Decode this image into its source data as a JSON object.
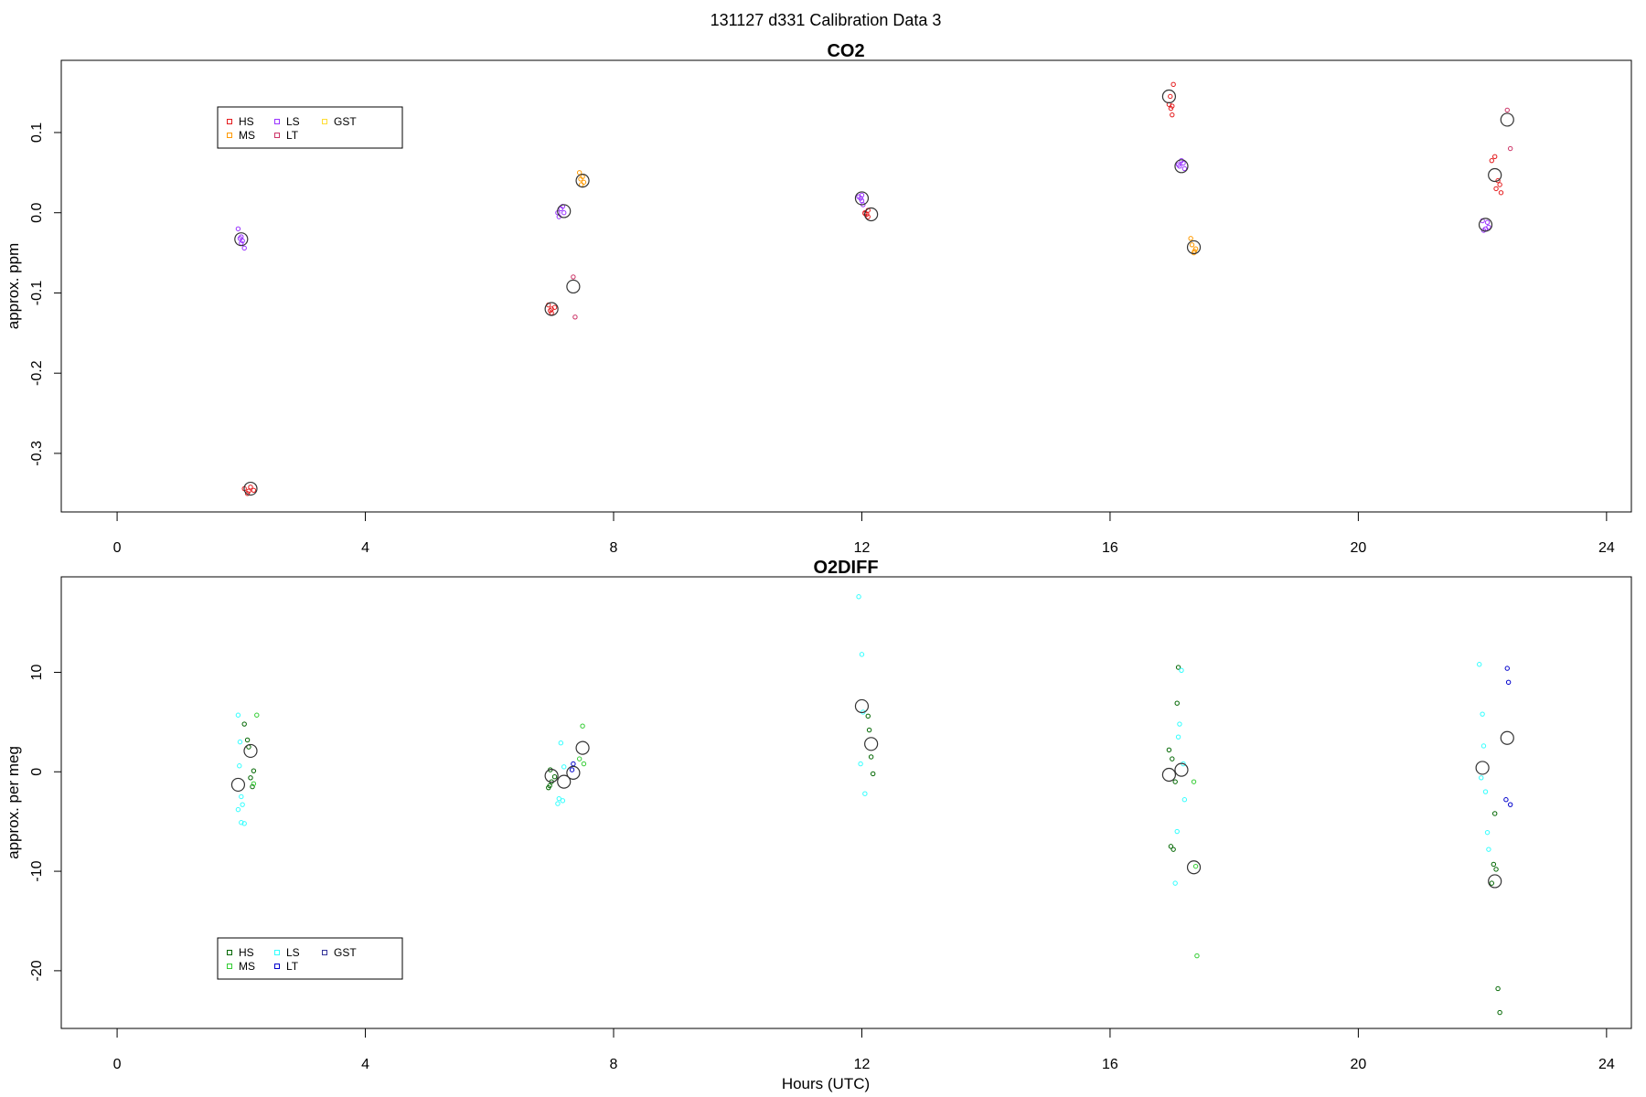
{
  "figure": {
    "title": "131127   d331   Calibration Data 3"
  },
  "chart_data": [
    {
      "type": "scatter",
      "title": "CO2",
      "xlabel": "",
      "ylabel": "approx. ppm",
      "xlim": [
        -0.9,
        24.4
      ],
      "ylim": [
        -0.373,
        0.19
      ],
      "xticks": [
        0,
        4,
        8,
        12,
        16,
        20,
        24
      ],
      "yticks": [
        -0.3,
        -0.2,
        -0.1,
        0.0,
        0.1
      ],
      "ytick_labels": [
        "-0.3",
        "-0.2",
        "-0.1",
        "0.0",
        "0.1"
      ],
      "grid": false,
      "legend": {
        "position": "top-left",
        "columns": 3
      },
      "series": [
        {
          "name": "HS",
          "color": "#e41a1c",
          "points": [
            [
              2.05,
              -0.344
            ],
            [
              2.1,
              -0.35
            ],
            [
              2.15,
              -0.342
            ],
            [
              2.2,
              -0.346
            ],
            [
              2.12,
              -0.347
            ],
            [
              6.95,
              -0.115
            ],
            [
              7.0,
              -0.125
            ],
            [
              7.05,
              -0.118
            ],
            [
              7.0,
              -0.12
            ],
            [
              6.98,
              -0.122
            ],
            [
              12.05,
              -0.001
            ],
            [
              12.1,
              0.003
            ],
            [
              12.08,
              -0.002
            ],
            [
              12.1,
              -0.005
            ],
            [
              12.05,
              0.0
            ],
            [
              16.95,
              0.135
            ],
            [
              17.0,
              0.122
            ],
            [
              16.98,
              0.13
            ],
            [
              17.02,
              0.16
            ],
            [
              17.0,
              0.133
            ],
            [
              16.97,
              0.145
            ],
            [
              22.15,
              0.065
            ],
            [
              22.2,
              0.07
            ],
            [
              22.25,
              0.04
            ],
            [
              22.28,
              0.035
            ],
            [
              22.3,
              0.025
            ],
            [
              22.22,
              0.03
            ]
          ]
        },
        {
          "name": "MS",
          "color": "#ff9900",
          "points": [
            [
              7.45,
              0.05
            ],
            [
              7.5,
              0.045
            ],
            [
              7.48,
              0.035
            ],
            [
              7.52,
              0.038
            ],
            [
              7.47,
              0.042
            ],
            [
              17.3,
              -0.032
            ],
            [
              17.35,
              -0.05
            ],
            [
              17.38,
              -0.045
            ],
            [
              17.32,
              -0.04
            ],
            [
              17.36,
              -0.048
            ]
          ]
        },
        {
          "name": "LS",
          "color": "#9933ff",
          "points": [
            [
              1.95,
              -0.02
            ],
            [
              1.98,
              -0.032
            ],
            [
              2.0,
              -0.038
            ],
            [
              2.02,
              -0.035
            ],
            [
              2.05,
              -0.044
            ],
            [
              2.0,
              -0.03
            ],
            [
              7.1,
              0.0
            ],
            [
              7.15,
              0.005
            ],
            [
              7.2,
              0.0
            ],
            [
              7.12,
              -0.005
            ],
            [
              7.18,
              0.008
            ],
            [
              11.95,
              0.02
            ],
            [
              12.0,
              0.015
            ],
            [
              12.02,
              0.01
            ],
            [
              12.0,
              0.022
            ],
            [
              11.98,
              0.018
            ],
            [
              17.1,
              0.06
            ],
            [
              17.15,
              0.065
            ],
            [
              17.2,
              0.055
            ],
            [
              17.12,
              0.058
            ],
            [
              17.18,
              0.062
            ],
            [
              22.0,
              -0.01
            ],
            [
              22.05,
              -0.02
            ],
            [
              22.08,
              -0.012
            ],
            [
              22.1,
              -0.018
            ],
            [
              22.02,
              -0.022
            ]
          ]
        },
        {
          "name": "LT",
          "color": "#cc3366",
          "points": [
            [
              7.35,
              -0.08
            ],
            [
              7.38,
              -0.13
            ],
            [
              22.4,
              0.128
            ],
            [
              22.45,
              0.08
            ]
          ]
        },
        {
          "name": "GST",
          "color": "#ffdd33",
          "points": []
        },
        {
          "name": "",
          "role": "mean",
          "color": "#333333",
          "points": [
            [
              2.0,
              -0.033
            ],
            [
              2.15,
              -0.344
            ],
            [
              7.0,
              -0.12
            ],
            [
              7.2,
              0.002
            ],
            [
              7.35,
              -0.092
            ],
            [
              7.5,
              0.04
            ],
            [
              12.0,
              0.018
            ],
            [
              12.15,
              -0.002
            ],
            [
              16.95,
              0.145
            ],
            [
              17.15,
              0.058
            ],
            [
              17.35,
              -0.043
            ],
            [
              22.05,
              -0.015
            ],
            [
              22.2,
              0.047
            ],
            [
              22.4,
              0.116
            ]
          ]
        }
      ]
    },
    {
      "type": "scatter",
      "title": "O2DIFF",
      "xlabel": "Hours (UTC)",
      "ylabel": "approx. per meg",
      "xlim": [
        -0.9,
        24.4
      ],
      "ylim": [
        -25.8,
        19.6
      ],
      "xticks": [
        0,
        4,
        8,
        12,
        16,
        20,
        24
      ],
      "yticks": [
        -20,
        -10,
        0,
        10
      ],
      "ytick_labels": [
        "-20",
        "-10",
        "0",
        "10"
      ],
      "grid": false,
      "legend": {
        "position": "bottom-left",
        "columns": 3
      },
      "series": [
        {
          "name": "HS",
          "color": "#006600",
          "points": [
            [
              2.05,
              4.8
            ],
            [
              2.1,
              3.2
            ],
            [
              2.12,
              2.5
            ],
            [
              2.15,
              -0.6
            ],
            [
              2.18,
              -1.5
            ],
            [
              2.2,
              0.1
            ],
            [
              6.95,
              -1.6
            ],
            [
              7.0,
              -1.0
            ],
            [
              6.98,
              0.2
            ],
            [
              7.05,
              -0.5
            ],
            [
              6.97,
              -1.4
            ],
            [
              12.1,
              5.6
            ],
            [
              12.12,
              4.2
            ],
            [
              12.15,
              1.5
            ],
            [
              12.18,
              -0.2
            ],
            [
              16.95,
              2.2
            ],
            [
              17.0,
              1.3
            ],
            [
              17.05,
              -1.0
            ],
            [
              16.98,
              -7.5
            ],
            [
              17.02,
              -7.8
            ],
            [
              17.08,
              6.9
            ],
            [
              17.1,
              10.5
            ],
            [
              22.2,
              -4.2
            ],
            [
              22.18,
              -9.3
            ],
            [
              22.22,
              -9.8
            ],
            [
              22.15,
              -11.2
            ],
            [
              22.25,
              -21.8
            ],
            [
              22.28,
              -24.2
            ]
          ]
        },
        {
          "name": "MS",
          "color": "#33cc33",
          "points": [
            [
              2.25,
              5.7
            ],
            [
              2.2,
              -1.2
            ],
            [
              7.5,
              4.6
            ],
            [
              7.45,
              1.3
            ],
            [
              7.52,
              0.8
            ],
            [
              17.4,
              -18.5
            ],
            [
              17.35,
              -1.0
            ],
            [
              17.38,
              -9.5
            ]
          ]
        },
        {
          "name": "LS",
          "color": "#33ffff",
          "points": [
            [
              1.95,
              5.7
            ],
            [
              1.98,
              3.0
            ],
            [
              1.97,
              0.6
            ],
            [
              2.0,
              -2.5
            ],
            [
              2.02,
              -3.3
            ],
            [
              1.95,
              -3.8
            ],
            [
              2.05,
              -5.2
            ],
            [
              2.0,
              -5.1
            ],
            [
              7.15,
              2.9
            ],
            [
              7.12,
              -2.7
            ],
            [
              7.1,
              -3.2
            ],
            [
              7.18,
              -2.9
            ],
            [
              7.2,
              0.5
            ],
            [
              11.95,
              17.6
            ],
            [
              12.0,
              11.8
            ],
            [
              12.02,
              6.0
            ],
            [
              12.05,
              -2.2
            ],
            [
              11.98,
              0.8
            ],
            [
              17.15,
              10.2
            ],
            [
              17.12,
              4.8
            ],
            [
              17.1,
              3.5
            ],
            [
              17.18,
              0.8
            ],
            [
              17.2,
              -2.8
            ],
            [
              17.08,
              -6.0
            ],
            [
              17.05,
              -11.2
            ],
            [
              21.95,
              10.8
            ],
            [
              22.0,
              5.8
            ],
            [
              22.02,
              2.6
            ],
            [
              22.05,
              -2.0
            ],
            [
              22.08,
              -6.1
            ],
            [
              22.1,
              -7.8
            ],
            [
              21.98,
              -0.6
            ]
          ]
        },
        {
          "name": "LT",
          "color": "#0000cc",
          "points": [
            [
              7.35,
              0.8
            ],
            [
              7.33,
              0.2
            ],
            [
              22.4,
              10.4
            ],
            [
              22.42,
              9.0
            ],
            [
              22.38,
              -2.8
            ],
            [
              22.45,
              -3.3
            ]
          ]
        },
        {
          "name": "GST",
          "color": "#333399",
          "points": []
        },
        {
          "name": "",
          "role": "mean",
          "color": "#333333",
          "points": [
            [
              1.95,
              -1.3
            ],
            [
              2.15,
              2.1
            ],
            [
              7.0,
              -0.4
            ],
            [
              7.2,
              -1.0
            ],
            [
              7.35,
              -0.1
            ],
            [
              7.5,
              2.4
            ],
            [
              12.0,
              6.6
            ],
            [
              12.15,
              2.8
            ],
            [
              16.95,
              -0.3
            ],
            [
              17.15,
              0.2
            ],
            [
              17.35,
              -9.6
            ],
            [
              22.0,
              0.4
            ],
            [
              22.2,
              -11.0
            ],
            [
              22.4,
              3.4
            ]
          ]
        }
      ]
    }
  ]
}
